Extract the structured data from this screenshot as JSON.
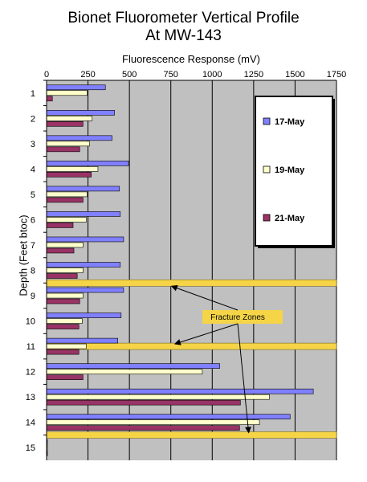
{
  "chart_data": {
    "type": "bar",
    "orientation": "horizontal",
    "title": "Bionet Fluorometer Vertical Profile",
    "subtitle": "At MW-143",
    "xlabel": "Fluorescence Response (mV)",
    "ylabel": "Depth (Feet btoc)",
    "xlim": [
      0,
      1750
    ],
    "x_ticks": [
      "0",
      "250",
      "500",
      "750",
      "1000",
      "1250",
      "1500",
      "1750"
    ],
    "categories": [
      "1",
      "2",
      "3",
      "4",
      "5",
      "6",
      "7",
      "8",
      "9",
      "10",
      "11",
      "12",
      "13",
      "14",
      "15"
    ],
    "series": [
      {
        "name": "17-May",
        "color": "#8080ff",
        "values": [
          355,
          410,
          395,
          495,
          440,
          445,
          465,
          445,
          465,
          450,
          430,
          1045,
          1610,
          1470,
          5
        ]
      },
      {
        "name": "19-May",
        "color": "#ffffcc",
        "values": [
          245,
          275,
          260,
          310,
          245,
          240,
          220,
          220,
          220,
          215,
          240,
          940,
          1345,
          1285,
          5
        ]
      },
      {
        "name": "21-May",
        "color": "#993366",
        "values": [
          35,
          220,
          200,
          270,
          220,
          160,
          165,
          185,
          200,
          195,
          195,
          220,
          1170,
          1165,
          5
        ]
      }
    ],
    "fracture_zones": {
      "label": "Fracture Zones",
      "depths": [
        8.5,
        11,
        14.5
      ]
    },
    "legend_position": "right",
    "grid": true
  }
}
